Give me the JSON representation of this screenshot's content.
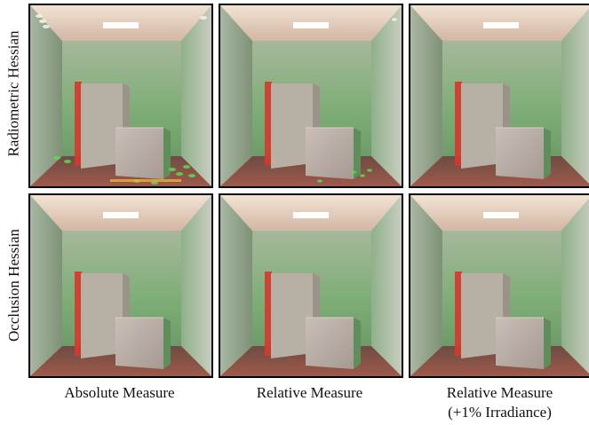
{
  "row_labels": [
    "Radiometric Hessian",
    "Occlusion Hessian"
  ],
  "column_labels": [
    {
      "line1": "Absolute Measure",
      "line2": ""
    },
    {
      "line1": "Relative Measure",
      "line2": ""
    },
    {
      "line1": "Relative Measure",
      "line2": "(+1% Irradiance)"
    }
  ],
  "panels": [
    {
      "row": 0,
      "col": 0,
      "description": "Cornell box, radiometric Hessian, absolute measure",
      "artifacts": "strong"
    },
    {
      "row": 0,
      "col": 1,
      "description": "Cornell box, radiometric Hessian, relative measure",
      "artifacts": "medium"
    },
    {
      "row": 0,
      "col": 2,
      "description": "Cornell box, radiometric Hessian, relative measure +1% irradiance",
      "artifacts": "none"
    },
    {
      "row": 1,
      "col": 0,
      "description": "Cornell box, occlusion Hessian, absolute measure",
      "artifacts": "none"
    },
    {
      "row": 1,
      "col": 1,
      "description": "Cornell box, occlusion Hessian, relative measure",
      "artifacts": "none"
    },
    {
      "row": 1,
      "col": 2,
      "description": "Cornell box, occlusion Hessian, relative measure +1% irradiance",
      "artifacts": "none"
    }
  ],
  "colors": {
    "left_wall": "#c94a3a",
    "right_wall": "#6fa86a",
    "back_wall": "#8fb58a",
    "floor": "#8d5a4b",
    "ceiling": "#e9d8c8",
    "light": "#ffffff",
    "box": "#bfb4ab"
  }
}
